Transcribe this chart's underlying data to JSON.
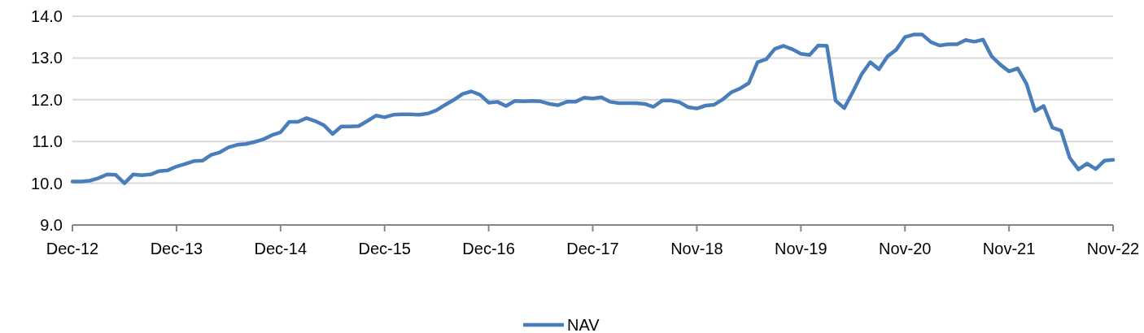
{
  "chart_data": {
    "type": "line",
    "categories": [
      "Dec-12",
      null,
      null,
      null,
      null,
      null,
      null,
      null,
      null,
      null,
      null,
      null,
      "Dec-13",
      null,
      null,
      null,
      null,
      null,
      null,
      null,
      null,
      null,
      null,
      null,
      "Dec-14",
      null,
      null,
      null,
      null,
      null,
      null,
      null,
      null,
      null,
      null,
      null,
      "Dec-15",
      null,
      null,
      null,
      null,
      null,
      null,
      null,
      null,
      null,
      null,
      null,
      "Dec-16",
      null,
      null,
      null,
      null,
      null,
      null,
      null,
      null,
      null,
      null,
      null,
      "Dec-17",
      null,
      null,
      null,
      null,
      null,
      null,
      null,
      null,
      null,
      null,
      null,
      "Nov-18",
      null,
      null,
      null,
      null,
      null,
      null,
      null,
      null,
      null,
      null,
      null,
      "Nov-19",
      null,
      null,
      null,
      null,
      null,
      null,
      null,
      null,
      null,
      null,
      null,
      "Nov-20",
      null,
      null,
      null,
      null,
      null,
      null,
      null,
      null,
      null,
      null,
      null,
      "Nov-21",
      null,
      null,
      null,
      null,
      null,
      null,
      null,
      null,
      null,
      null,
      null,
      "Nov-22"
    ],
    "series": [
      {
        "name": "NAV",
        "color": "#4a7ebb",
        "values": [
          10.04,
          10.04,
          10.06,
          10.12,
          10.21,
          10.2,
          10.0,
          10.21,
          10.19,
          10.21,
          10.29,
          10.31,
          10.4,
          10.46,
          10.53,
          10.54,
          10.68,
          10.74,
          10.86,
          10.92,
          10.94,
          10.99,
          11.05,
          11.15,
          11.22,
          11.47,
          11.47,
          11.56,
          11.49,
          11.39,
          11.18,
          11.36,
          11.36,
          11.37,
          11.49,
          11.62,
          11.58,
          11.64,
          11.65,
          11.65,
          11.64,
          11.67,
          11.75,
          11.88,
          12.0,
          12.14,
          12.2,
          12.12,
          11.93,
          11.95,
          11.85,
          11.97,
          11.96,
          11.97,
          11.96,
          11.9,
          11.87,
          11.95,
          11.95,
          12.05,
          12.03,
          12.06,
          11.95,
          11.92,
          11.92,
          11.92,
          11.9,
          11.83,
          11.98,
          11.98,
          11.94,
          11.82,
          11.79,
          11.86,
          11.88,
          12.01,
          12.18,
          12.27,
          12.4,
          12.9,
          12.97,
          13.22,
          13.29,
          13.21,
          13.1,
          13.07,
          13.3,
          13.29,
          11.98,
          11.8,
          12.19,
          12.61,
          12.9,
          12.73,
          13.04,
          13.2,
          13.5,
          13.56,
          13.56,
          13.38,
          13.3,
          13.33,
          13.33,
          13.43,
          13.39,
          13.44,
          13.04,
          12.84,
          12.68,
          12.75,
          12.39,
          11.73,
          11.85,
          11.33,
          11.26,
          10.61,
          10.33,
          10.47,
          10.34,
          10.54,
          10.56
        ]
      }
    ],
    "ylim": [
      9,
      14
    ],
    "yticks": [
      {
        "value": 9,
        "label": "9.0"
      },
      {
        "value": 10,
        "label": "10.0"
      },
      {
        "value": 11,
        "label": "11.0"
      },
      {
        "value": 12,
        "label": "12.0"
      },
      {
        "value": 13,
        "label": "13.0"
      },
      {
        "value": 14,
        "label": "14.0"
      }
    ],
    "grid": "y",
    "legend": "bottom",
    "marker": "none",
    "line_style": "solid"
  }
}
